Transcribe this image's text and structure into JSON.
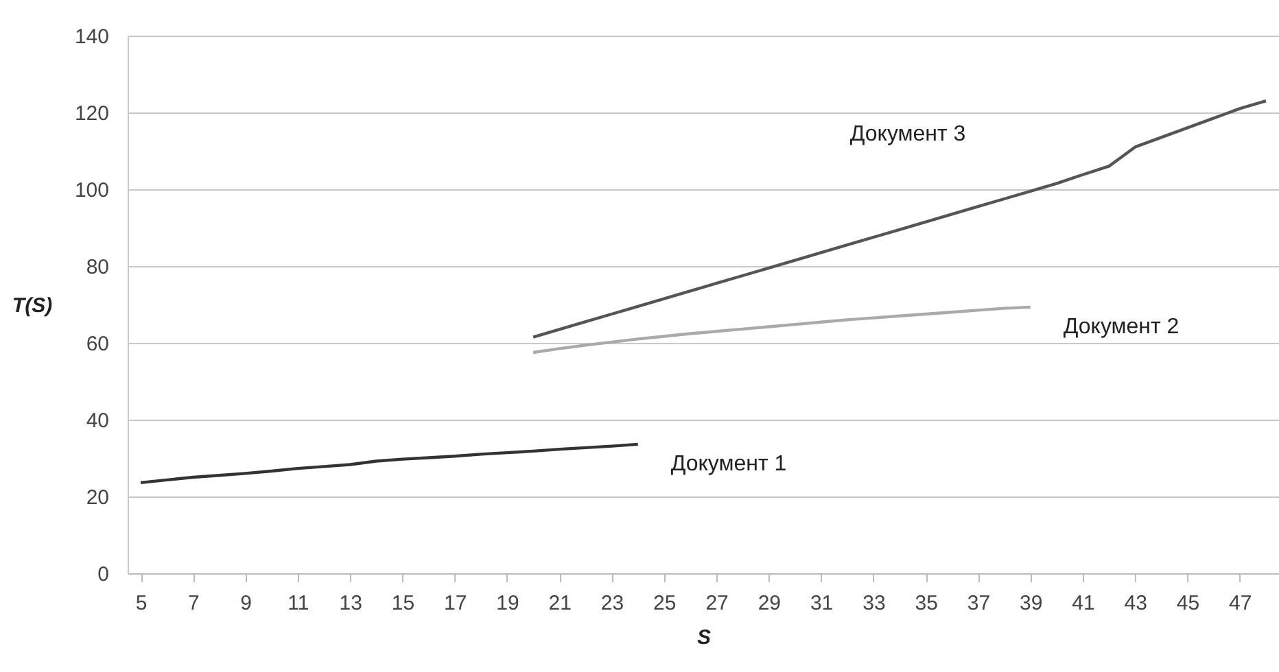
{
  "chart_data": {
    "type": "line",
    "xlabel": "S",
    "ylabel": "T(S)",
    "xlim": [
      4.5,
      48.5
    ],
    "xticks": [
      5,
      7,
      9,
      11,
      13,
      15,
      17,
      19,
      21,
      23,
      25,
      27,
      29,
      31,
      33,
      35,
      37,
      39,
      41,
      43,
      45,
      47
    ],
    "ylim": [
      0,
      140
    ],
    "yticks": [
      0,
      20,
      40,
      60,
      80,
      100,
      120,
      140
    ],
    "grid": "y",
    "legend": false,
    "series": [
      {
        "name": "Документ 1",
        "color": "#333333",
        "x": [
          5,
          6,
          7,
          8,
          9,
          10,
          11,
          12,
          13,
          14,
          15,
          16,
          17,
          18,
          19,
          20,
          21,
          22,
          23,
          24
        ],
        "values": [
          23.6,
          24.3,
          25,
          25.5,
          26,
          26.6,
          27.3,
          27.8,
          28.3,
          29.2,
          29.7,
          30.1,
          30.5,
          31,
          31.4,
          31.8,
          32.3,
          32.7,
          33.1,
          33.6
        ]
      },
      {
        "name": "Документ 2",
        "color": "#aaaaaa",
        "x": [
          20,
          21,
          22,
          23,
          24,
          25,
          26,
          27,
          28,
          29,
          30,
          31,
          32,
          33,
          34,
          35,
          36,
          37,
          38,
          39
        ],
        "values": [
          57.5,
          58.5,
          59.4,
          60.2,
          61,
          61.7,
          62.4,
          63,
          63.6,
          64.2,
          64.8,
          65.4,
          66,
          66.5,
          67,
          67.5,
          68,
          68.5,
          69,
          69.3
        ]
      },
      {
        "name": "Документ 3",
        "color": "#555555",
        "x": [
          20,
          21,
          22,
          23,
          24,
          25,
          26,
          27,
          28,
          29,
          30,
          31,
          32,
          33,
          34,
          35,
          36,
          37,
          38,
          39,
          40,
          41,
          42,
          43,
          44,
          45,
          46,
          47,
          48
        ],
        "values": [
          61.5,
          63.5,
          65.5,
          67.5,
          69.5,
          71.5,
          73.5,
          75.5,
          77.5,
          79.5,
          81.5,
          83.5,
          85.5,
          87.5,
          89.5,
          91.5,
          93.5,
          95.5,
          97.5,
          99.5,
          101.5,
          103.8,
          106,
          111,
          113.5,
          116,
          118.5,
          121,
          123
        ]
      }
    ]
  }
}
